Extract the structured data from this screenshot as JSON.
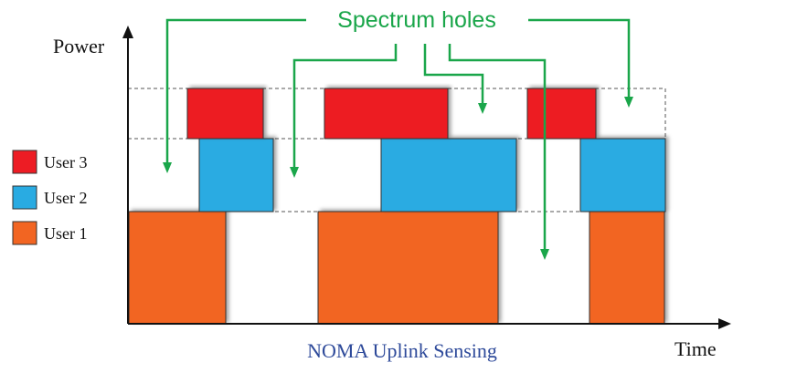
{
  "axes": {
    "y_label": "Power",
    "x_label": "Time"
  },
  "annotation": {
    "label": "Spectrum holes",
    "color": "#1aa64a"
  },
  "caption": {
    "text": "NOMA Uplink Sensing",
    "color": "#2e4a9a"
  },
  "legend": [
    {
      "label": "User 3",
      "color": "#ed1c24"
    },
    {
      "label": "User 2",
      "color": "#29abe2"
    },
    {
      "label": "User 1",
      "color": "#f26522"
    }
  ]
}
